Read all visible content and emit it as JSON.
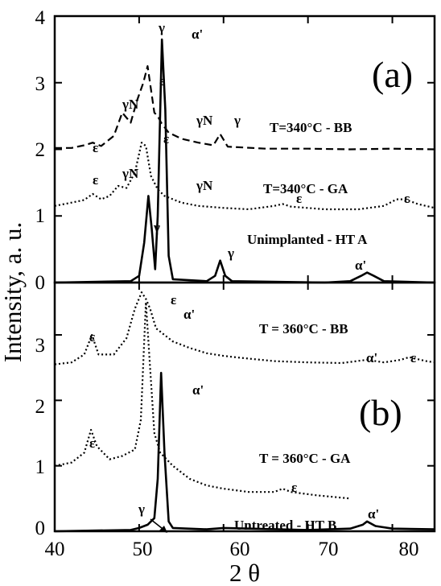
{
  "chart_data": [
    {
      "type": "line",
      "panel_label": "(a)",
      "xlabel": "2 θ",
      "ylabel": "Intensity, a. u.",
      "xlim": [
        40,
        85
      ],
      "ylim": [
        0,
        4
      ],
      "x_ticks": [
        40,
        50,
        60,
        70,
        80
      ],
      "y_ticks": [
        0,
        1,
        2,
        3,
        4
      ],
      "series": [
        {
          "name": "T=340°C - BB",
          "style": "dashed",
          "points": [
            [
              40,
              2.02
            ],
            [
              42,
              2.02
            ],
            [
              43.5,
              2.06
            ],
            [
              44.5,
              2.1
            ],
            [
              45.5,
              2.05
            ],
            [
              47,
              2.2
            ],
            [
              48,
              2.55
            ],
            [
              49,
              2.4
            ],
            [
              49.8,
              2.75
            ],
            [
              50.5,
              3.0
            ],
            [
              51,
              3.25
            ],
            [
              51.4,
              2.9
            ],
            [
              51.8,
              2.55
            ],
            [
              52.2,
              2.5
            ],
            [
              52.6,
              2.4
            ],
            [
              53.5,
              2.25
            ],
            [
              55,
              2.16
            ],
            [
              57,
              2.1
            ],
            [
              58.8,
              2.06
            ],
            [
              59.6,
              2.23
            ],
            [
              60.5,
              2.04
            ],
            [
              65,
              2.01
            ],
            [
              70,
              2.01
            ],
            [
              75,
              2.0
            ],
            [
              80,
              2.01
            ],
            [
              85,
              2.0
            ]
          ]
        },
        {
          "name": "T=340°C - GA",
          "style": "dotted",
          "points": [
            [
              40,
              1.15
            ],
            [
              42,
              1.2
            ],
            [
              43.5,
              1.24
            ],
            [
              44.5,
              1.33
            ],
            [
              45.5,
              1.25
            ],
            [
              46.5,
              1.3
            ],
            [
              47.5,
              1.45
            ],
            [
              48.5,
              1.42
            ],
            [
              49.5,
              1.65
            ],
            [
              50.3,
              2.1
            ],
            [
              50.8,
              2.05
            ],
            [
              51.4,
              1.6
            ],
            [
              52.2,
              1.4
            ],
            [
              53,
              1.3
            ],
            [
              55,
              1.2
            ],
            [
              57,
              1.15
            ],
            [
              60,
              1.12
            ],
            [
              63,
              1.1
            ],
            [
              66,
              1.15
            ],
            [
              67,
              1.18
            ],
            [
              68,
              1.14
            ],
            [
              72,
              1.1
            ],
            [
              76,
              1.1
            ],
            [
              79,
              1.15
            ],
            [
              80.5,
              1.25
            ],
            [
              81.5,
              1.25
            ],
            [
              83,
              1.18
            ],
            [
              85,
              1.12
            ]
          ]
        },
        {
          "name": "Unimplanted - HT A",
          "style": "solid",
          "points": [
            [
              40,
              0.0
            ],
            [
              49,
              0.02
            ],
            [
              50,
              0.1
            ],
            [
              50.6,
              0.6
            ],
            [
              51.1,
              1.3
            ],
            [
              51.5,
              0.8
            ],
            [
              51.9,
              0.2
            ],
            [
              52.2,
              1.0
            ],
            [
              52.7,
              3.65
            ],
            [
              53.1,
              2.6
            ],
            [
              53.5,
              0.4
            ],
            [
              54,
              0.05
            ],
            [
              58,
              0.02
            ],
            [
              59,
              0.1
            ],
            [
              59.6,
              0.33
            ],
            [
              60.2,
              0.1
            ],
            [
              61,
              0.02
            ],
            [
              72,
              0.0
            ],
            [
              75,
              0.02
            ],
            [
              76.3,
              0.1
            ],
            [
              77,
              0.15
            ],
            [
              77.8,
              0.1
            ],
            [
              79,
              0.02
            ],
            [
              85,
              0.0
            ]
          ]
        }
      ],
      "annotations": [
        "γ",
        "α'",
        "ε",
        "ε",
        "γN",
        "γN",
        "γ",
        "ε",
        "γN",
        "ε",
        "γN",
        "ε",
        "ε",
        "γ",
        "γ",
        "α'"
      ]
    },
    {
      "type": "line",
      "panel_label": "(b)",
      "xlabel": "2 θ",
      "ylabel": "Intensity, a. u.",
      "xlim": [
        40,
        85
      ],
      "ylim": [
        0,
        3.8
      ],
      "x_ticks": [
        40,
        50,
        60,
        70,
        80
      ],
      "y_ticks": [
        0,
        1,
        2,
        3
      ],
      "series": [
        {
          "name": "T = 360°C - BB",
          "style": "dotted",
          "points": [
            [
              40,
              2.55
            ],
            [
              42,
              2.58
            ],
            [
              43.5,
              2.7
            ],
            [
              44.4,
              3.0
            ],
            [
              45.2,
              2.7
            ],
            [
              47,
              2.7
            ],
            [
              48.5,
              2.95
            ],
            [
              49.5,
              3.4
            ],
            [
              50.3,
              3.65
            ],
            [
              50.8,
              3.55
            ],
            [
              51.3,
              3.4
            ],
            [
              52,
              3.1
            ],
            [
              53,
              3.0
            ],
            [
              54,
              2.9
            ],
            [
              56,
              2.8
            ],
            [
              58,
              2.72
            ],
            [
              60,
              2.68
            ],
            [
              62,
              2.65
            ],
            [
              66,
              2.6
            ],
            [
              70,
              2.58
            ],
            [
              74,
              2.57
            ],
            [
              77,
              2.62
            ],
            [
              79,
              2.58
            ],
            [
              81,
              2.62
            ],
            [
              82,
              2.66
            ],
            [
              84,
              2.6
            ],
            [
              85,
              2.58
            ]
          ]
        },
        {
          "name": "T = 360°C - GA",
          "style": "dotted",
          "points": [
            [
              40,
              1.0
            ],
            [
              42,
              1.05
            ],
            [
              43.5,
              1.2
            ],
            [
              44.3,
              1.55
            ],
            [
              45,
              1.3
            ],
            [
              46.5,
              1.1
            ],
            [
              48,
              1.15
            ],
            [
              49.5,
              1.25
            ],
            [
              50.2,
              1.7
            ],
            [
              50.8,
              3.5
            ],
            [
              51.3,
              2.5
            ],
            [
              51.8,
              1.5
            ],
            [
              52.5,
              1.2
            ],
            [
              54,
              1.0
            ],
            [
              56,
              0.8
            ],
            [
              58,
              0.7
            ],
            [
              60,
              0.65
            ],
            [
              63,
              0.6
            ],
            [
              66,
              0.6
            ],
            [
              67,
              0.65
            ],
            [
              68,
              0.6
            ],
            [
              71,
              0.55
            ],
            [
              75,
              0.5
            ]
          ]
        },
        {
          "name": "Untreated - HT B",
          "style": "solid",
          "points": [
            [
              40,
              0.0
            ],
            [
              49,
              0.02
            ],
            [
              50,
              0.05
            ],
            [
              51,
              0.1
            ],
            [
              51.8,
              0.2
            ],
            [
              52.2,
              0.8
            ],
            [
              52.6,
              2.42
            ],
            [
              53.0,
              1.2
            ],
            [
              53.5,
              0.15
            ],
            [
              54,
              0.05
            ],
            [
              58,
              0.03
            ],
            [
              60,
              0.05
            ],
            [
              70,
              0.02
            ],
            [
              75,
              0.04
            ],
            [
              76.5,
              0.1
            ],
            [
              77,
              0.15
            ],
            [
              78,
              0.08
            ],
            [
              80,
              0.04
            ],
            [
              85,
              0.03
            ]
          ]
        }
      ],
      "annotations": [
        "ε",
        "ε",
        "α'",
        "α'",
        "ε",
        "ε",
        "ε",
        "α'",
        "γ",
        "α'"
      ]
    }
  ]
}
